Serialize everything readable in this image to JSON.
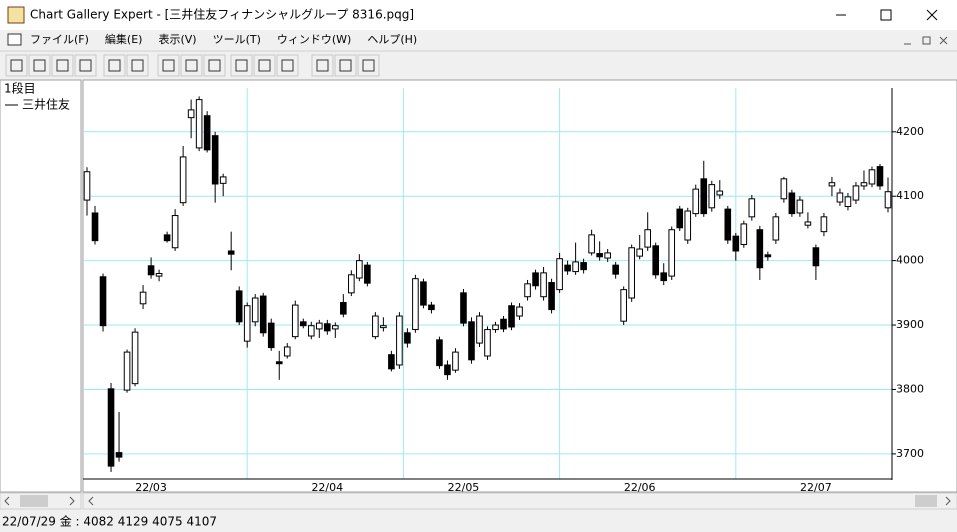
{
  "window": {
    "title": "Chart Gallery Expert - [三井住友フィナンシャルグループ 8316.pqg]"
  },
  "menu": [
    "ファイル(F)",
    "編集(E)",
    "表示(V)",
    "ツール(T)",
    "ウィンドウ(W)",
    "ヘルプ(H)"
  ],
  "panel": {
    "row_label": "1段目",
    "series_label": "三井住友"
  },
  "status": "22/07/29 金 : 4082 4129 4075 4107",
  "chart_data": {
    "type": "candlestick",
    "categories": [
      null,
      null,
      null,
      null,
      null,
      null,
      null,
      null,
      "22/03",
      null,
      null,
      null,
      null,
      null,
      null,
      null,
      null,
      null,
      null,
      null,
      null,
      null,
      null,
      null,
      null,
      null,
      null,
      null,
      null,
      null,
      "22/04",
      null,
      null,
      null,
      null,
      null,
      null,
      null,
      null,
      null,
      null,
      null,
      null,
      null,
      null,
      null,
      null,
      "22/05",
      null,
      null,
      null,
      null,
      null,
      null,
      null,
      null,
      null,
      null,
      null,
      null,
      null,
      null,
      null,
      null,
      null,
      null,
      null,
      null,
      null,
      "22/06",
      null,
      null,
      null,
      null,
      null,
      null,
      null,
      null,
      null,
      null,
      null,
      null,
      null,
      null,
      null,
      null,
      null,
      null,
      null,
      null,
      null,
      "22/07",
      null,
      null,
      null,
      null,
      null,
      null,
      null,
      null,
      null
    ],
    "open": [
      4094,
      4074,
      3975,
      3801,
      3702,
      3799,
      3809,
      3933,
      3992,
      3976,
      4040,
      4020,
      4090,
      4222,
      4175,
      4225,
      4194,
      4120,
      4015,
      3953,
      3875,
      3905,
      3945,
      3903,
      3843,
      3852,
      3882,
      3905,
      3883,
      3894,
      3902,
      3894,
      3935,
      3950,
      3973,
      3993,
      3882,
      3896,
      3854,
      3838,
      3888,
      3893,
      3967,
      3931,
      3877,
      3838,
      3830,
      3950,
      3905,
      3872,
      3852,
      3893,
      3909,
      3930,
      3914,
      3944,
      3981,
      3944,
      3966,
      3955,
      3993,
      3983,
      3997,
      4012,
      4011,
      4004,
      3993,
      3906,
      3942,
      4007,
      4021,
      4023,
      3981,
      3976,
      4080,
      4032,
      4073,
      4127,
      4082,
      4102,
      4080,
      4038,
      4025,
      4068,
      4048,
      4009,
      4032,
      4096,
      4105,
      4074,
      4055,
      4020,
      4045,
      4116,
      4091,
      4084,
      4094,
      4116,
      4119,
      4146,
      4082
    ],
    "high": [
      4145,
      4085,
      3980,
      3810,
      3765,
      3862,
      3895,
      3962,
      4005,
      3986,
      4045,
      4080,
      4178,
      4250,
      4255,
      4232,
      4200,
      4135,
      4045,
      3960,
      3935,
      3948,
      3950,
      3910,
      3860,
      3872,
      3938,
      3910,
      3905,
      3908,
      3908,
      3904,
      3948,
      3985,
      4010,
      3998,
      3920,
      3912,
      3860,
      3920,
      3895,
      3978,
      3972,
      3936,
      3882,
      3845,
      3864,
      3956,
      3912,
      3920,
      3898,
      3905,
      3914,
      3935,
      3934,
      3970,
      3986,
      3990,
      3972,
      4012,
      4000,
      4028,
      4003,
      4048,
      4030,
      4018,
      3998,
      3960,
      4025,
      4040,
      4075,
      4028,
      3996,
      4053,
      4085,
      4082,
      4118,
      4155,
      4124,
      4125,
      4085,
      4043,
      4062,
      4102,
      4054,
      4014,
      4074,
      4130,
      4110,
      4100,
      4075,
      4025,
      4074,
      4130,
      4112,
      4105,
      4122,
      4140,
      4146,
      4150,
      4129
    ],
    "low": [
      4070,
      4025,
      3890,
      3672,
      3688,
      3795,
      3805,
      3925,
      3972,
      3968,
      4028,
      4015,
      4085,
      4190,
      4170,
      4168,
      4090,
      4100,
      3985,
      3900,
      3865,
      3898,
      3882,
      3860,
      3815,
      3848,
      3878,
      3895,
      3878,
      3880,
      3885,
      3880,
      3912,
      3945,
      3968,
      3960,
      3878,
      3890,
      3828,
      3832,
      3865,
      3888,
      3926,
      3918,
      3832,
      3815,
      3826,
      3898,
      3840,
      3866,
      3846,
      3888,
      3889,
      3892,
      3908,
      3938,
      3955,
      3938,
      3918,
      3950,
      3978,
      3978,
      3980,
      4008,
      4000,
      3998,
      3972,
      3900,
      3936,
      4002,
      4015,
      3972,
      3962,
      3970,
      4046,
      4026,
      4068,
      4068,
      4076,
      4096,
      4026,
      4000,
      4020,
      4062,
      3970,
      4000,
      4026,
      4090,
      4068,
      4068,
      4050,
      3970,
      4038,
      4100,
      4085,
      4078,
      4088,
      4110,
      4114,
      4110,
      4075
    ],
    "close": [
      4138,
      4031,
      3899,
      3681,
      3695,
      3858,
      3889,
      3951,
      3978,
      3980,
      4031,
      4070,
      4161,
      4234,
      4250,
      4172,
      4119,
      4130,
      4010,
      3905,
      3930,
      3942,
      3888,
      3865,
      3840,
      3866,
      3931,
      3899,
      3899,
      3903,
      3891,
      3899,
      3917,
      3978,
      4000,
      3965,
      3914,
      3899,
      3832,
      3914,
      3872,
      3972,
      3931,
      3924,
      3837,
      3823,
      3858,
      3903,
      3846,
      3914,
      3893,
      3900,
      3894,
      3897,
      3928,
      3964,
      3961,
      3981,
      3924,
      4003,
      3984,
      3998,
      3986,
      4040,
      4006,
      4012,
      3979,
      3955,
      4020,
      4018,
      4048,
      3978,
      3969,
      4048,
      4051,
      4077,
      4111,
      4073,
      4118,
      4108,
      4032,
      4015,
      4057,
      4096,
      3989,
      4006,
      4068,
      4127,
      4073,
      4094,
      4060,
      3992,
      4068,
      4121,
      4105,
      4099,
      4116,
      4121,
      4141,
      4116,
      4107
    ],
    "up_color": "#ffffff",
    "down_color": "#000000",
    "grid": true,
    "grid_color": "#9ee9f6",
    "ylim": [
      3661,
      4268
    ],
    "yticks": [
      3700,
      3800,
      3900,
      4000,
      4100,
      4200
    ]
  }
}
